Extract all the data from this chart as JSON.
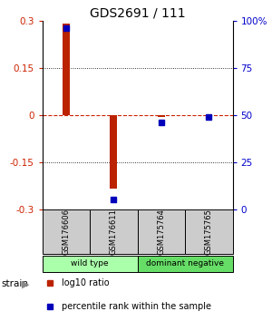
{
  "title": "GDS2691 / 111",
  "samples": [
    "GSM176606",
    "GSM176611",
    "GSM175764",
    "GSM175765"
  ],
  "log10_ratio": [
    0.29,
    -0.235,
    -0.005,
    -0.002
  ],
  "percentile_rank": [
    96,
    5,
    46,
    49
  ],
  "ylim_left": [
    -0.3,
    0.3
  ],
  "ylim_right": [
    0,
    100
  ],
  "yticks_left": [
    -0.3,
    -0.15,
    0,
    0.15,
    0.3
  ],
  "yticks_right": [
    0,
    25,
    50,
    75,
    100
  ],
  "ytick_labels_right": [
    "0",
    "25",
    "50",
    "75",
    "100%"
  ],
  "bar_color": "#bb2200",
  "dot_color": "#0000bb",
  "zero_line_color": "#cc2200",
  "groups": [
    {
      "label": "wild type",
      "samples": [
        0,
        1
      ],
      "color": "#aaffaa"
    },
    {
      "label": "dominant negative",
      "samples": [
        2,
        3
      ],
      "color": "#66dd66"
    }
  ],
  "strain_label": "strain",
  "legend_bar_label": "log10 ratio",
  "legend_dot_label": "percentile rank within the sample",
  "left_tick_color": "#cc2200",
  "right_tick_color": "#0000cc",
  "bar_width": 0.15
}
